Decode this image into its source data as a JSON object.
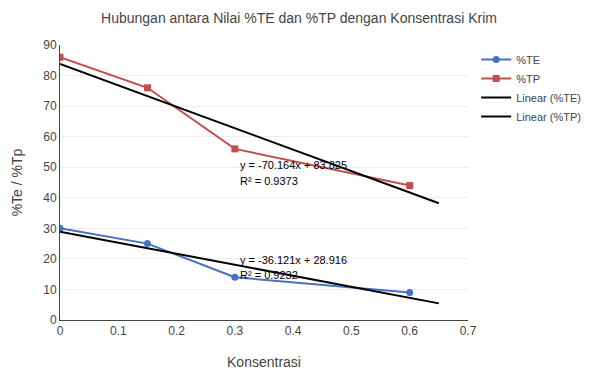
{
  "chart_data": {
    "type": "line",
    "title": "Hubungan antara Nilai %TE dan %TP dengan Konsentrasi Krim",
    "x_label": "Konsentrasi",
    "y_label": "%Te / %Tp",
    "xlim": [
      0,
      0.7
    ],
    "ylim": [
      0,
      90
    ],
    "xticks": [
      0,
      0.1,
      0.2,
      0.3,
      0.4,
      0.5,
      0.6,
      0.7
    ],
    "yticks": [
      0,
      10,
      20,
      30,
      40,
      50,
      60,
      70,
      80,
      90
    ],
    "grid": "y",
    "legend": "right",
    "series": [
      {
        "name": "%TE",
        "color": "#4472C4",
        "marker": "circle",
        "line_style": "solid",
        "x": [
          0,
          0.15,
          0.3,
          0.6
        ],
        "values": [
          30,
          25,
          14,
          9
        ]
      },
      {
        "name": "%TP",
        "color": "#C0504D",
        "marker": "square",
        "line_style": "solid",
        "x": [
          0,
          0.15,
          0.3,
          0.6
        ],
        "values": [
          86,
          76,
          56,
          44
        ]
      },
      {
        "name": "Linear (%TE)",
        "color": "#000000",
        "marker": "none",
        "line_style": "solid",
        "x": [
          0,
          0.65
        ],
        "values": [
          28.916,
          5.43735
        ]
      },
      {
        "name": "Linear (%TP)",
        "color": "#000000",
        "marker": "none",
        "line_style": "solid",
        "x": [
          0,
          0.65
        ],
        "values": [
          83.825,
          38.2184
        ]
      }
    ],
    "annotations": [
      {
        "text": "y = -70.164x + 83.825",
        "x": 0.305,
        "y": 48
      },
      {
        "text": "R² = 0.9373",
        "x": 0.305,
        "y": 43
      },
      {
        "text": "y = -36.121x + 28.916",
        "x": 0.305,
        "y": 17
      },
      {
        "text": "R² = 0.9232",
        "x": 0.305,
        "y": 12
      }
    ]
  }
}
